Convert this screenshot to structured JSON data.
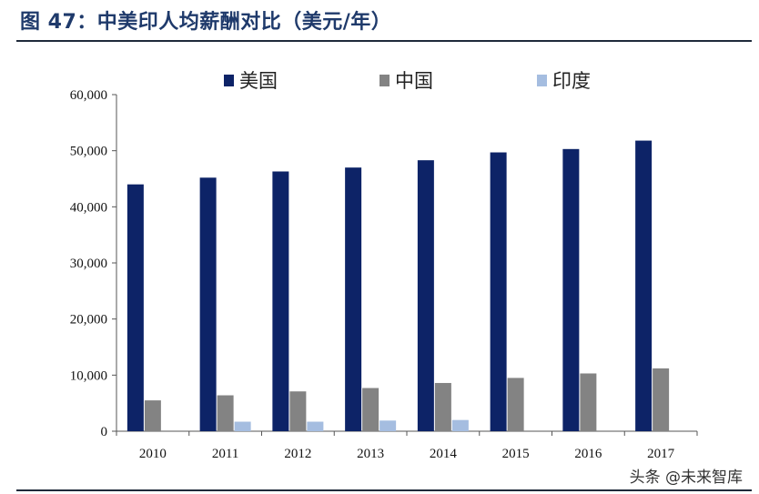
{
  "header": {
    "figure_title": "图 47：中美印人均薪酬对比（美元/年）"
  },
  "watermark": "头条 @未来智库",
  "colors": {
    "usa": "#0d2367",
    "china": "#838383",
    "india": "#a5bde0",
    "title": "#1f3a6b",
    "axis": "#555555"
  },
  "chart_data": {
    "type": "bar",
    "title": "",
    "xlabel": "",
    "ylabel": "",
    "ylim": [
      0,
      60000
    ],
    "yticks": [
      0,
      10000,
      20000,
      30000,
      40000,
      50000,
      60000
    ],
    "ytick_labels": [
      "0",
      "10,000",
      "20,000",
      "30,000",
      "40,000",
      "50,000",
      "60,000"
    ],
    "categories": [
      "2010",
      "2011",
      "2012",
      "2013",
      "2014",
      "2015",
      "2016",
      "2017"
    ],
    "legend_position": "top",
    "grid": false,
    "series": [
      {
        "name": "美国",
        "color_key": "usa",
        "values": [
          44000,
          45200,
          46300,
          47000,
          48300,
          49700,
          50300,
          51800
        ]
      },
      {
        "name": "中国",
        "color_key": "china",
        "values": [
          5500,
          6400,
          7100,
          7700,
          8600,
          9500,
          10300,
          11200
        ]
      },
      {
        "name": "印度",
        "color_key": "india",
        "values": [
          null,
          1700,
          1700,
          1900,
          2000,
          null,
          null,
          null
        ]
      }
    ]
  }
}
